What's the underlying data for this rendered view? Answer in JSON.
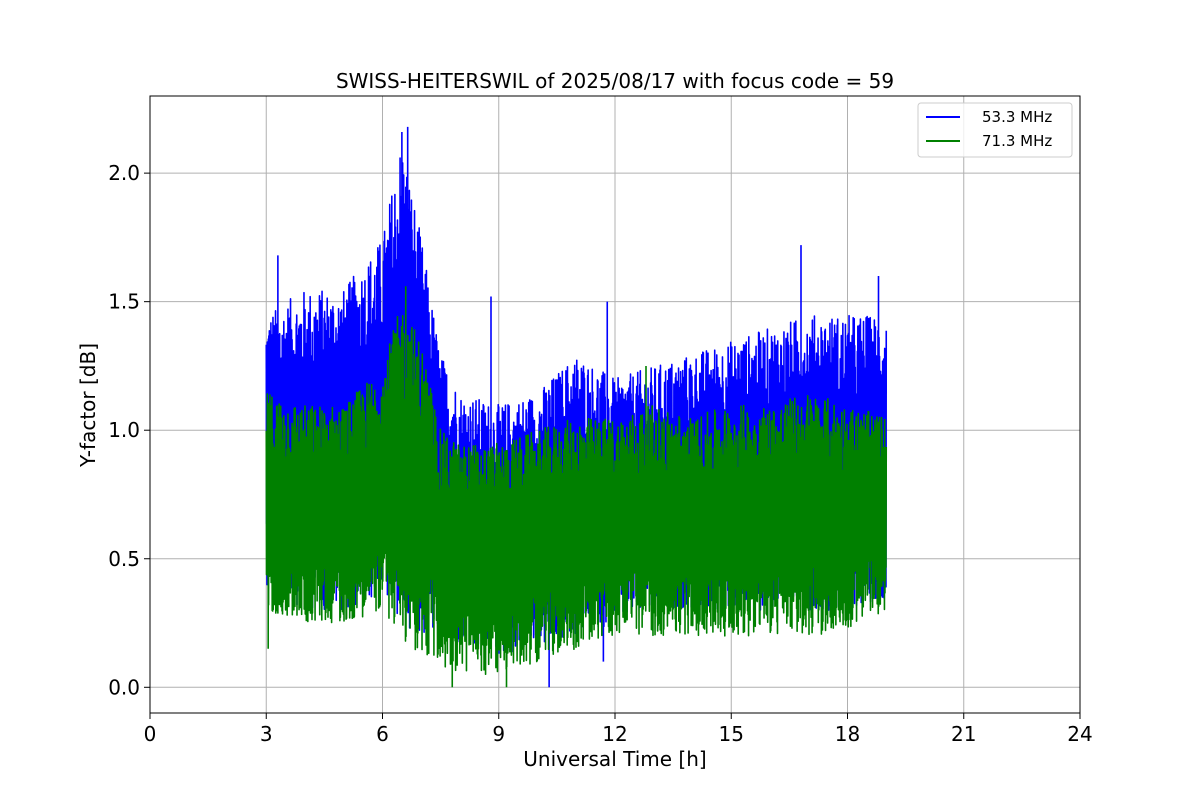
{
  "chart_data": {
    "type": "line",
    "title": "SWISS-HEITERSWIL of 2025/08/17 with focus code = 59",
    "xlabel": "Universal Time [h]",
    "ylabel": "Y-factor [dB]",
    "xlim": [
      0,
      24
    ],
    "ylim": [
      -0.1,
      2.3
    ],
    "xticks": [
      0,
      3,
      6,
      9,
      12,
      15,
      18,
      21,
      24
    ],
    "xtick_labels": [
      "0",
      "3",
      "6",
      "9",
      "12",
      "15",
      "18",
      "21",
      "24"
    ],
    "yticks": [
      0.0,
      0.5,
      1.0,
      1.5,
      2.0
    ],
    "ytick_labels": [
      "0.0",
      "0.5",
      "1.0",
      "1.5",
      "2.0"
    ],
    "grid": true,
    "legend_position": "top-right",
    "series": [
      {
        "name": "53.3 MHz",
        "color": "#0000ff",
        "x_range": [
          3.0,
          19.0
        ],
        "envelope_hours": [
          3,
          4,
          5,
          6,
          6.5,
          7,
          7.5,
          8,
          9,
          10,
          11,
          12,
          13,
          14,
          15,
          16,
          17,
          18,
          19
        ],
        "envelope_high": [
          1.45,
          1.55,
          1.55,
          1.75,
          2.15,
          1.75,
          1.3,
          1.15,
          1.1,
          1.15,
          1.3,
          1.2,
          1.25,
          1.3,
          1.35,
          1.4,
          1.45,
          1.45,
          1.45
        ],
        "envelope_low": [
          0.4,
          0.3,
          0.3,
          0.35,
          0.25,
          0.2,
          0.15,
          0.15,
          0.12,
          0.15,
          0.2,
          0.25,
          0.3,
          0.3,
          0.3,
          0.3,
          0.3,
          0.3,
          0.35
        ],
        "peaks": [
          [
            3.3,
            1.68
          ],
          [
            6.5,
            2.16
          ],
          [
            6.65,
            2.18
          ],
          [
            8.8,
            1.52
          ],
          [
            11.8,
            1.5
          ],
          [
            16.8,
            1.72
          ],
          [
            18.8,
            1.6
          ]
        ],
        "troughs": [
          [
            10.3,
            0.0
          ],
          [
            11.7,
            0.1
          ]
        ]
      },
      {
        "name": "71.3 MHz",
        "color": "#008000",
        "x_range": [
          3.0,
          19.0
        ],
        "envelope_hours": [
          3,
          4,
          5,
          6,
          6.5,
          7,
          7.5,
          8,
          9,
          10,
          11,
          12,
          13,
          14,
          15,
          16,
          17,
          18,
          19
        ],
        "envelope_high": [
          1.15,
          1.1,
          1.1,
          1.25,
          1.5,
          1.35,
          1.0,
          0.95,
          0.95,
          1.0,
          1.05,
          1.05,
          1.1,
          1.05,
          1.1,
          1.1,
          1.15,
          1.1,
          1.05
        ],
        "envelope_low": [
          0.3,
          0.25,
          0.25,
          0.3,
          0.18,
          0.12,
          0.08,
          0.05,
          0.05,
          0.1,
          0.15,
          0.2,
          0.2,
          0.2,
          0.2,
          0.2,
          0.2,
          0.22,
          0.3
        ],
        "peaks": [
          [
            6.6,
            1.56
          ],
          [
            12.8,
            1.25
          ]
        ],
        "troughs": [
          [
            7.8,
            0.0
          ],
          [
            9.2,
            0.0
          ],
          [
            3.05,
            0.15
          ]
        ]
      }
    ]
  }
}
